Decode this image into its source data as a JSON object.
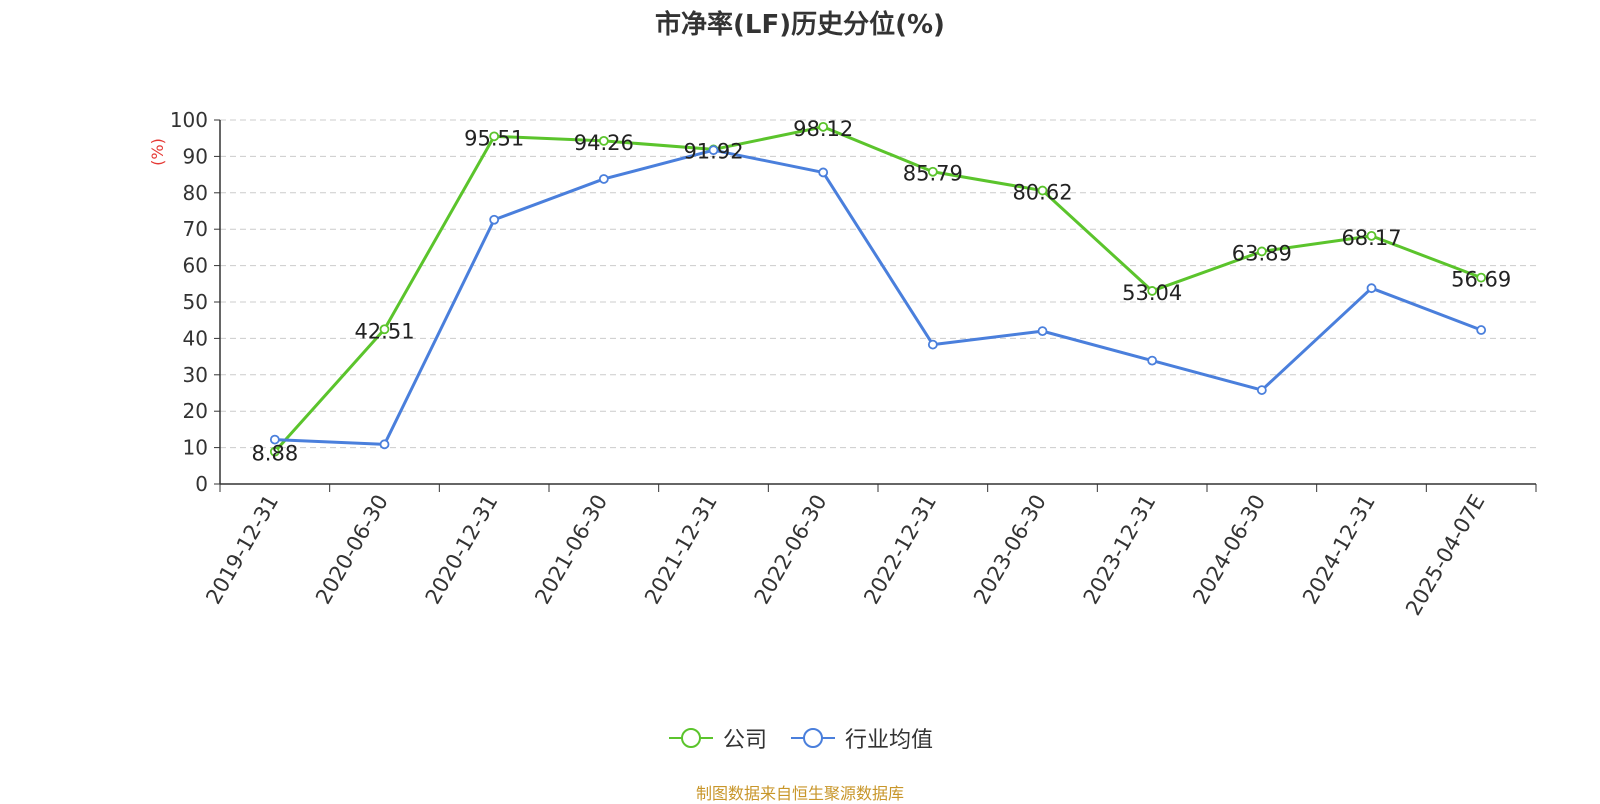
{
  "chart_data": {
    "type": "line",
    "title": "市净率(LF)历史分位(%)",
    "ylabel": "(%)",
    "xlabel": "",
    "ylim": [
      0,
      100
    ],
    "yticks": [
      0,
      10,
      20,
      30,
      40,
      50,
      60,
      70,
      80,
      90,
      100
    ],
    "grid": true,
    "legend_position": "bottom",
    "categories": [
      "2019-12-31",
      "2020-06-30",
      "2020-12-31",
      "2021-06-30",
      "2021-12-31",
      "2022-06-30",
      "2022-12-31",
      "2023-06-30",
      "2023-12-31",
      "2024-06-30",
      "2024-12-31",
      "2025-04-07E"
    ],
    "series": [
      {
        "name": "公司",
        "color": "#5bc42c",
        "show_labels": true,
        "values": [
          8.88,
          42.51,
          95.51,
          94.26,
          91.92,
          98.12,
          85.79,
          80.62,
          53.04,
          63.89,
          68.17,
          56.69
        ]
      },
      {
        "name": "行业均值",
        "color": "#4a7fdc",
        "show_labels": false,
        "values": [
          12.2,
          10.9,
          72.6,
          83.8,
          91.7,
          85.6,
          38.3,
          42.0,
          33.9,
          25.8,
          53.8,
          42.3
        ]
      }
    ],
    "source_note": "制图数据来自恒生聚源数据库"
  }
}
